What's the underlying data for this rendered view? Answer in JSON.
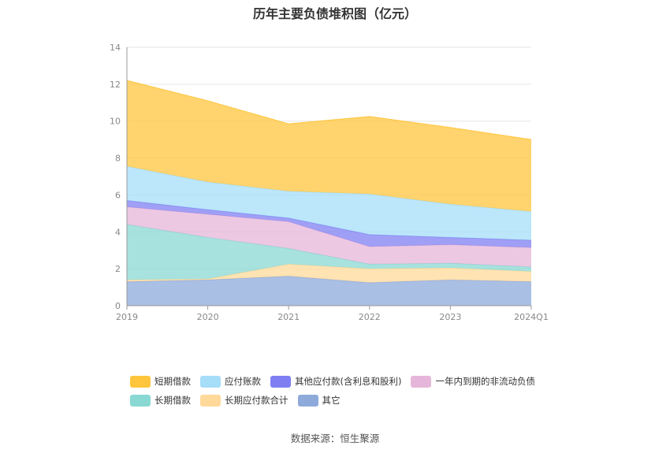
{
  "chart_data": {
    "type": "area",
    "stacked": true,
    "title": "历年主要负债堆积图（亿元）",
    "categories": [
      "2019",
      "2020",
      "2021",
      "2022",
      "2023",
      "2024Q1"
    ],
    "ylim": [
      0,
      14
    ],
    "yticks": [
      0,
      2,
      4,
      6,
      8,
      10,
      12,
      14
    ],
    "grid": true,
    "legend_position": "bottom",
    "series": [
      {
        "name": "其它",
        "color": "#8eaadb",
        "values": [
          1.3,
          1.4,
          1.6,
          1.25,
          1.4,
          1.3
        ]
      },
      {
        "name": "长期应付款合计",
        "color": "#ffd99a",
        "values": [
          0.1,
          0.05,
          0.65,
          0.75,
          0.65,
          0.55
        ]
      },
      {
        "name": "长期借款",
        "color": "#8ad8d3",
        "values": [
          3.0,
          2.25,
          0.85,
          0.25,
          0.25,
          0.25
        ]
      },
      {
        "name": "一年内到期的非流动负债",
        "color": "#e6b6da",
        "values": [
          0.95,
          1.25,
          1.45,
          0.95,
          1.0,
          1.05
        ]
      },
      {
        "name": "其他应付款(含利息和股利)",
        "color": "#7f7ff2",
        "values": [
          0.35,
          0.25,
          0.2,
          0.65,
          0.4,
          0.4
        ]
      },
      {
        "name": "应付账款",
        "color": "#a6ddf8",
        "values": [
          1.85,
          1.5,
          1.45,
          2.2,
          1.8,
          1.55
        ]
      },
      {
        "name": "短期借款",
        "color": "#ffc53d",
        "values": [
          4.65,
          4.4,
          3.65,
          4.2,
          4.15,
          3.9
        ]
      }
    ]
  },
  "legend_rows": [
    [
      {
        "label": "短期借款",
        "color": "#ffc53d"
      },
      {
        "label": "应付账款",
        "color": "#a6ddf8"
      },
      {
        "label": "其他应付款(含利息和股利)",
        "color": "#7f7ff2"
      },
      {
        "label": "一年内到期的非流动负债",
        "color": "#e6b6da"
      }
    ],
    [
      {
        "label": "长期借款",
        "color": "#8ad8d3"
      },
      {
        "label": "长期应付款合计",
        "color": "#ffd99a"
      },
      {
        "label": "其它",
        "color": "#8eaadb"
      }
    ]
  ],
  "source": "数据来源：恒生聚源"
}
